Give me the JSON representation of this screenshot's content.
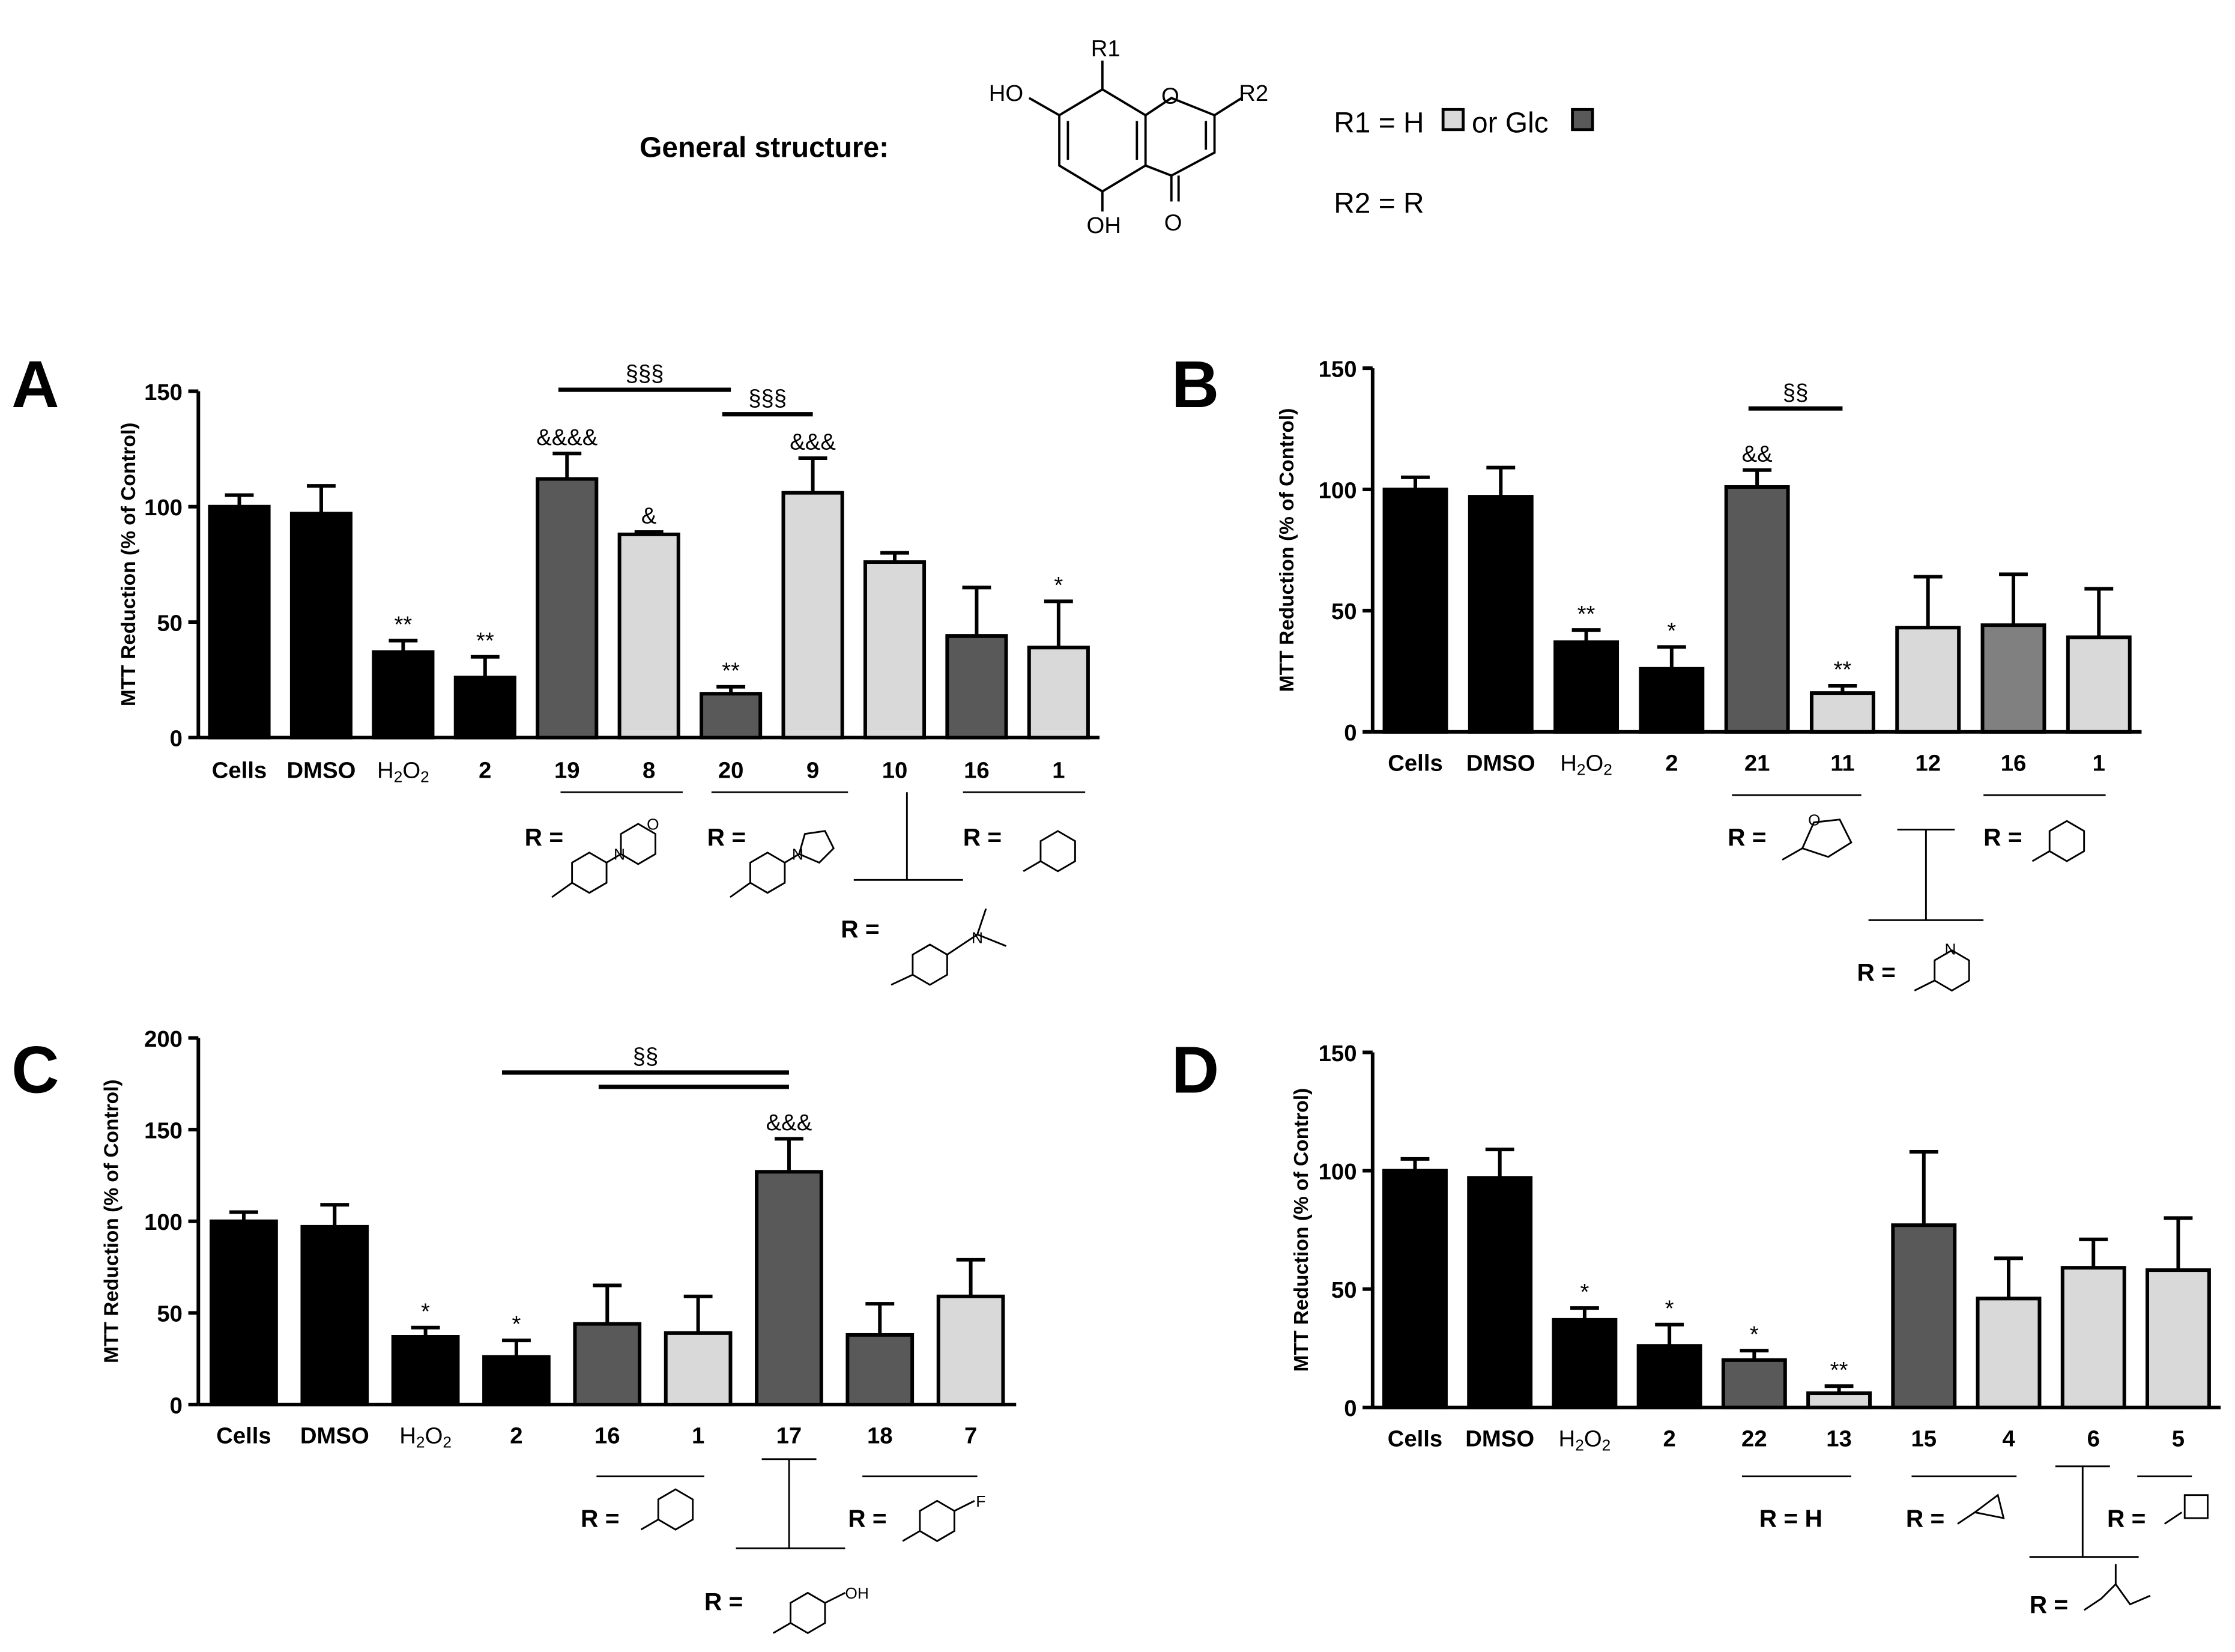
{
  "header": {
    "general_structure_label": "General structure:",
    "r1_text": "R1 = H",
    "r1_or": "or Glc",
    "r2_text": "R2 = R",
    "atom_labels": {
      "R1": "R1",
      "R2": "R2",
      "HO": "HO",
      "OH": "OH",
      "O_ring": "O",
      "O_keto": "O"
    }
  },
  "colors": {
    "black": "#000000",
    "dark_gray": "#595959",
    "light_gray": "#d9d9d9",
    "mid_gray": "#808080"
  },
  "chart_data": [
    {
      "panel": "A",
      "type": "bar",
      "ylabel": "MTT Reduction (% of Control)",
      "ylim": [
        0,
        150
      ],
      "yticks": [
        0,
        50,
        100,
        150
      ],
      "categories": [
        "Cells",
        "DMSO",
        "H2O2",
        "2",
        "19",
        "8",
        "20",
        "9",
        "10",
        "16",
        "1"
      ],
      "values": [
        100,
        97,
        37,
        26,
        112,
        88,
        19,
        106,
        76,
        44,
        39
      ],
      "errors": [
        5,
        12,
        5,
        9,
        11,
        1,
        3,
        15,
        4,
        21,
        20
      ],
      "colors": [
        "black",
        "black",
        "black",
        "black",
        "dark_gray",
        "light_gray",
        "dark_gray",
        "light_gray",
        "light_gray",
        "dark_gray",
        "light_gray"
      ],
      "annotations": [
        "",
        "",
        "**",
        "**",
        "&&&&",
        "&",
        "**",
        "&&&",
        "",
        "",
        "*"
      ],
      "brackets": [
        {
          "from": 4,
          "to": 6,
          "label": "§§§"
        },
        {
          "from": 6,
          "to": 7,
          "label": "§§§"
        }
      ],
      "substituents": [
        "R =",
        "R =",
        "R =",
        "R ="
      ]
    },
    {
      "panel": "B",
      "type": "bar",
      "ylabel": "MTT Reduction (% of Control)",
      "ylim": [
        0,
        150
      ],
      "yticks": [
        0,
        50,
        100,
        150
      ],
      "categories": [
        "Cells",
        "DMSO",
        "H2O2",
        "2",
        "21",
        "11",
        "12",
        "16",
        "1"
      ],
      "values": [
        100,
        97,
        37,
        26,
        101,
        16,
        43,
        44,
        39
      ],
      "errors": [
        5,
        12,
        5,
        9,
        7,
        3,
        21,
        21,
        20
      ],
      "colors": [
        "black",
        "black",
        "black",
        "black",
        "dark_gray",
        "light_gray",
        "light_gray",
        "mid_gray",
        "light_gray"
      ],
      "annotations": [
        "",
        "",
        "**",
        "*",
        "&&",
        "**",
        "",
        "",
        ""
      ],
      "brackets": [
        {
          "from": 4,
          "to": 5,
          "label": "§§"
        }
      ],
      "substituents": [
        "R =",
        "R =",
        "R ="
      ]
    },
    {
      "panel": "C",
      "type": "bar",
      "ylabel": "MTT Reduction (% of Control)",
      "ylim": [
        0,
        200
      ],
      "yticks": [
        0,
        50,
        100,
        150,
        200
      ],
      "categories": [
        "Cells",
        "DMSO",
        "H2O2",
        "2",
        "16",
        "1",
        "17",
        "18",
        "7"
      ],
      "values": [
        100,
        97,
        37,
        26,
        44,
        39,
        127,
        38,
        59
      ],
      "errors": [
        5,
        12,
        5,
        9,
        21,
        20,
        18,
        17,
        20
      ],
      "colors": [
        "black",
        "black",
        "black",
        "black",
        "dark_gray",
        "light_gray",
        "dark_gray",
        "dark_gray",
        "light_gray"
      ],
      "annotations": [
        "",
        "",
        "*",
        "*",
        "",
        "",
        "&&&",
        "",
        ""
      ],
      "brackets": [
        {
          "from": 3,
          "to": 6,
          "label": "§§"
        },
        {
          "from": 4,
          "to": 6,
          "label": ""
        }
      ],
      "substituents": [
        "R =",
        "R =",
        "R ="
      ]
    },
    {
      "panel": "D",
      "type": "bar",
      "ylabel": "MTT Reduction (% of Control)",
      "ylim": [
        0,
        150
      ],
      "yticks": [
        0,
        50,
        100,
        150
      ],
      "categories": [
        "Cells",
        "DMSO",
        "H2O2",
        "2",
        "22",
        "13",
        "15",
        "4",
        "6",
        "5"
      ],
      "values": [
        100,
        97,
        37,
        26,
        20,
        6,
        77,
        46,
        59,
        58
      ],
      "errors": [
        5,
        12,
        5,
        9,
        4,
        3,
        31,
        17,
        12,
        22
      ],
      "colors": [
        "black",
        "black",
        "black",
        "black",
        "dark_gray",
        "light_gray",
        "dark_gray",
        "light_gray",
        "light_gray",
        "light_gray"
      ],
      "annotations": [
        "",
        "",
        "*",
        "*",
        "*",
        "**",
        "",
        "",
        "",
        ""
      ],
      "brackets": [],
      "substituents": [
        "R = H",
        "R =",
        "R =",
        "R ="
      ]
    }
  ]
}
